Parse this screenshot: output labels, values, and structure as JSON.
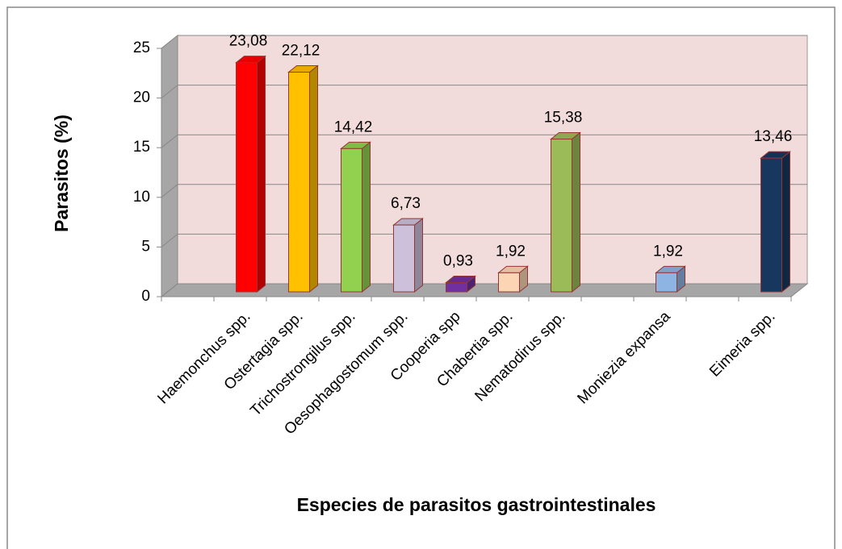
{
  "chart_data": {
    "type": "bar3d",
    "y_label": "Parasitos (%)",
    "x_label": "Especies de parasitos gastrointestinales",
    "categories": [
      null,
      "Haemonchus spp.",
      "Ostertagia spp.",
      "Trichostrongilus spp.",
      "Oesophagostomum spp.",
      "Cooperia spp",
      "Chabertia spp.",
      "Nematodirus spp.",
      null,
      "Moniezia expansa",
      null,
      "Eimeria spp."
    ],
    "values": [
      null,
      23.08,
      22.12,
      14.42,
      6.73,
      0.93,
      1.92,
      15.38,
      null,
      1.92,
      null,
      13.46
    ],
    "value_labels": [
      null,
      "23,08",
      "22,12",
      "14,42",
      "6,73",
      "0,93",
      "1,92",
      "15,38",
      null,
      "1,92",
      null,
      "13,46"
    ],
    "colors": [
      null,
      "#ff0000",
      "#ffc000",
      "#92d050",
      "#ccc0da",
      "#7030a0",
      "#fcd5b4",
      "#9bbb59",
      null,
      "#8db4e2",
      null,
      "#17375e"
    ],
    "ylim": [
      0,
      25
    ],
    "yticks": [
      0,
      5,
      10,
      15,
      20,
      25
    ],
    "grid": true
  }
}
